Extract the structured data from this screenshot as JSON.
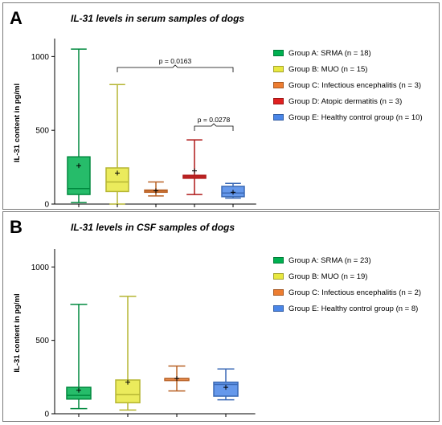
{
  "chart_data": [
    {
      "type": "box",
      "panel": "A",
      "title": "IL-31 levels in serum samples of dogs",
      "ylabel": "IL-31 content in pg/ml",
      "xlabel": "",
      "ylim": [
        0,
        1100
      ],
      "yticks": [
        "0",
        "500",
        "1000"
      ],
      "grid": false,
      "legend_position": "right",
      "series": [
        {
          "name": "Group A: SRMA (n = 18)",
          "color": "#00b050",
          "min": 10,
          "q1": 65,
          "median": 105,
          "q3": 320,
          "max": 1050,
          "mean": 260
        },
        {
          "name": "Group B: MUO (n = 15)",
          "color": "#e8e840",
          "min": 0,
          "q1": 85,
          "median": 150,
          "q3": 245,
          "max": 810,
          "mean": 210
        },
        {
          "name": "Group C: Infectious encephalitis (n = 3)",
          "color": "#ed7d31",
          "min": 55,
          "q1": 80,
          "median": 90,
          "q3": 95,
          "max": 150,
          "mean": 90
        },
        {
          "name": "Group D: Atopic dermatitis (n = 3)",
          "color": "#e02020",
          "min": 65,
          "q1": 175,
          "median": 185,
          "q3": 195,
          "max": 435,
          "mean": 225
        },
        {
          "name": "Group E: Healthy control group (n = 10)",
          "color": "#4a86e8",
          "min": 40,
          "q1": 50,
          "median": 75,
          "q3": 120,
          "max": 140,
          "mean": 80
        }
      ],
      "annotations": [
        {
          "text": "p = 0.0163",
          "from": 1,
          "to": 4
        },
        {
          "text": "p = 0.0278",
          "from": 3,
          "to": 4
        }
      ]
    },
    {
      "type": "box",
      "panel": "B",
      "title": "IL-31 levels in CSF samples of dogs",
      "ylabel": "IL-31 content in pg/ml",
      "xlabel": "",
      "ylim": [
        0,
        1100
      ],
      "yticks": [
        "0",
        "500",
        "1000"
      ],
      "grid": false,
      "legend_position": "right",
      "series": [
        {
          "name": "Group A: SRMA (n = 23)",
          "color": "#00b050",
          "min": 35,
          "q1": 100,
          "median": 125,
          "q3": 180,
          "max": 745,
          "mean": 160
        },
        {
          "name": "Group B: MUO (n = 19)",
          "color": "#e8e840",
          "min": 25,
          "q1": 75,
          "median": 130,
          "q3": 230,
          "max": 800,
          "mean": 215
        },
        {
          "name": "Group C: Infectious encephalitis (n = 2)",
          "color": "#ed7d31",
          "min": 155,
          "q1": 240,
          "median": 240,
          "q3": 240,
          "max": 325,
          "mean": 240
        },
        {
          "name": "Group E: Healthy control group (n = 8)",
          "color": "#4a86e8",
          "min": 95,
          "q1": 120,
          "median": 200,
          "q3": 215,
          "max": 305,
          "mean": 180
        }
      ],
      "annotations": []
    }
  ],
  "panels": {
    "a_letter": "A",
    "b_letter": "B"
  }
}
